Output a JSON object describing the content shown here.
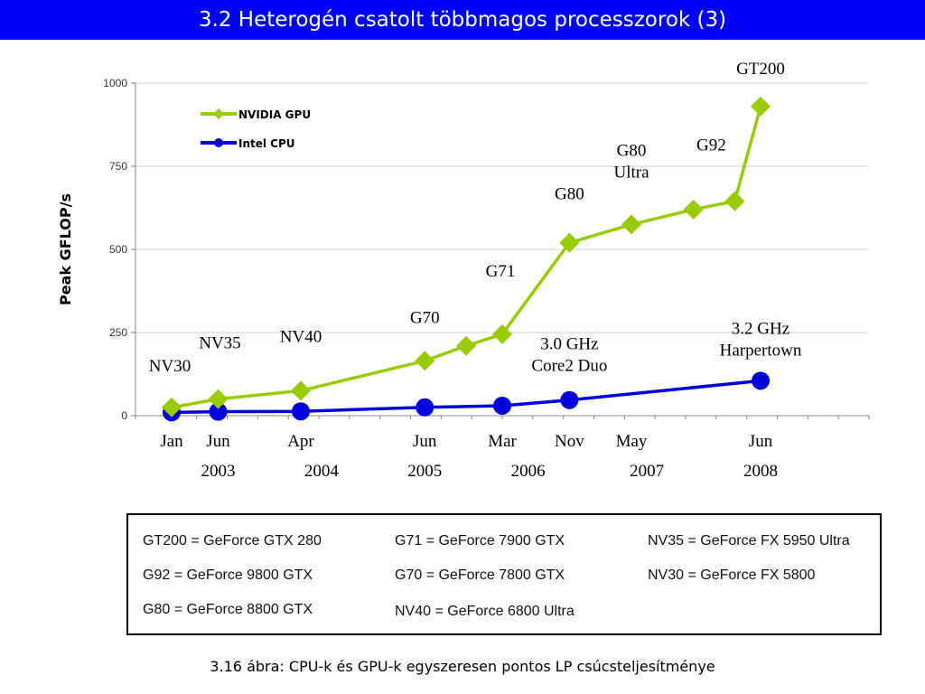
{
  "slide": {
    "title": "3.2 Heterogén csatolt többmagos processzorok (3)",
    "caption": "3.16 ábra: CPU-k és GPU-k egyszeresen pontos LP csúcsteljesítménye"
  },
  "colors": {
    "title_bg": "#0000ff",
    "gpu": "#99cc00",
    "cpu": "#0000dd",
    "grid": "#d0d0d0"
  },
  "chart_data": {
    "type": "line",
    "ylabel": "Peak GFLOP/s",
    "ylim": [
      0,
      1000
    ],
    "yticks": [
      "0",
      "250",
      "500",
      "750",
      "1000"
    ],
    "xtick_labels": [
      "Jan",
      "Jun",
      "Apr",
      "Jun",
      "Mar",
      "Nov",
      "May",
      "Jun"
    ],
    "year_labels": [
      "2003",
      "2004",
      "2005",
      "2006",
      "2007",
      "2008"
    ],
    "legend": {
      "position": "top-left",
      "entries": [
        "NVIDIA GPU",
        "Intel CPU"
      ]
    },
    "series": [
      {
        "name": "NVIDIA GPU",
        "points": [
          {
            "x": 2003.0,
            "y": 25
          },
          {
            "x": 2003.45,
            "y": 50
          },
          {
            "x": 2004.25,
            "y": 75
          },
          {
            "x": 2005.45,
            "y": 165
          },
          {
            "x": 2005.85,
            "y": 210
          },
          {
            "x": 2006.2,
            "y": 245
          },
          {
            "x": 2006.85,
            "y": 520
          },
          {
            "x": 2007.45,
            "y": 575
          },
          {
            "x": 2008.05,
            "y": 620
          },
          {
            "x": 2008.45,
            "y": 645
          },
          {
            "x": 2008.7,
            "y": 930
          }
        ]
      },
      {
        "name": "Intel CPU",
        "points": [
          {
            "x": 2003.0,
            "y": 10
          },
          {
            "x": 2003.45,
            "y": 12
          },
          {
            "x": 2004.25,
            "y": 13
          },
          {
            "x": 2005.45,
            "y": 25
          },
          {
            "x": 2006.2,
            "y": 30
          },
          {
            "x": 2006.85,
            "y": 47
          },
          {
            "x": 2008.7,
            "y": 105
          }
        ]
      }
    ],
    "annotations": [
      {
        "text": "NV30",
        "x": 2003.0,
        "y": 25,
        "series": "gpu"
      },
      {
        "text": "NV35",
        "x": 2003.45,
        "y": 50,
        "series": "gpu"
      },
      {
        "text": "NV40",
        "x": 2004.25,
        "y": 75,
        "series": "gpu"
      },
      {
        "text": "G70",
        "x": 2005.45,
        "y": 165,
        "series": "gpu"
      },
      {
        "text": "G71",
        "x": 2006.2,
        "y": 245,
        "series": "gpu"
      },
      {
        "text": "G80",
        "x": 2006.85,
        "y": 520,
        "series": "gpu"
      },
      {
        "text": "G80 Ultra",
        "x": 2007.45,
        "y": 575,
        "series": "gpu"
      },
      {
        "text": "G92",
        "x": 2008.45,
        "y": 645,
        "series": "gpu"
      },
      {
        "text": "GT200",
        "x": 2008.7,
        "y": 930,
        "series": "gpu"
      },
      {
        "text": "3.0 GHz Core2 Duo",
        "x": 2006.85,
        "y": 47,
        "series": "cpu"
      },
      {
        "text": "3.2 GHz Harpertown",
        "x": 2008.7,
        "y": 105,
        "series": "cpu"
      }
    ]
  },
  "definitions": [
    [
      "GT200 = GeForce GTX 280",
      "G71 = GeForce 7900 GTX",
      "NV35 = GeForce FX 5950 Ultra"
    ],
    [
      "G92 = GeForce 9800 GTX",
      "G70 = GeForce 7800 GTX",
      "NV30 = GeForce FX 5800"
    ],
    [
      "G80 = GeForce 8800 GTX",
      "NV40 = GeForce 6800 Ultra",
      ""
    ]
  ]
}
